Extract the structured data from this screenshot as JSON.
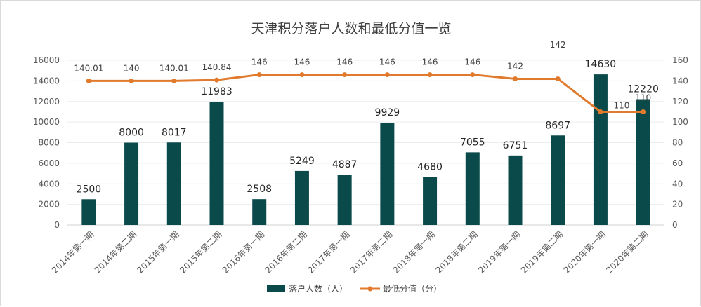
{
  "chart_data": {
    "type": "bar+line",
    "title": "天津积分落户人数和最低分值一览",
    "categories": [
      "2014年第一期",
      "2014年第二期",
      "2015年第一期",
      "2015年第二期",
      "2016年第一期",
      "2016年第二期",
      "2017年第一期",
      "2017年第二期",
      "2018年第一期",
      "2018年第二期",
      "2019年第一期",
      "2019年第二期",
      "2020年第一期",
      "2020年第二期"
    ],
    "series": [
      {
        "name": "落户人数（人）",
        "type": "bar",
        "axis": "left",
        "color": "#0b4a4a",
        "values": [
          2500,
          8000,
          8017,
          11983,
          2508,
          5249,
          4887,
          9929,
          4680,
          7055,
          6751,
          8697,
          14630,
          12220
        ]
      },
      {
        "name": "最低分值（分）",
        "type": "line",
        "axis": "right",
        "color": "#e07b2e",
        "values": [
          140.01,
          140,
          140.01,
          140.84,
          146,
          146,
          146,
          146,
          146,
          146,
          142,
          142,
          110,
          110
        ]
      }
    ],
    "y_left": {
      "min": 0,
      "max": 16000,
      "step": 2000
    },
    "y_right": {
      "min": 0,
      "max": 160,
      "step": 20
    },
    "grid": true,
    "legend": "bottom"
  }
}
